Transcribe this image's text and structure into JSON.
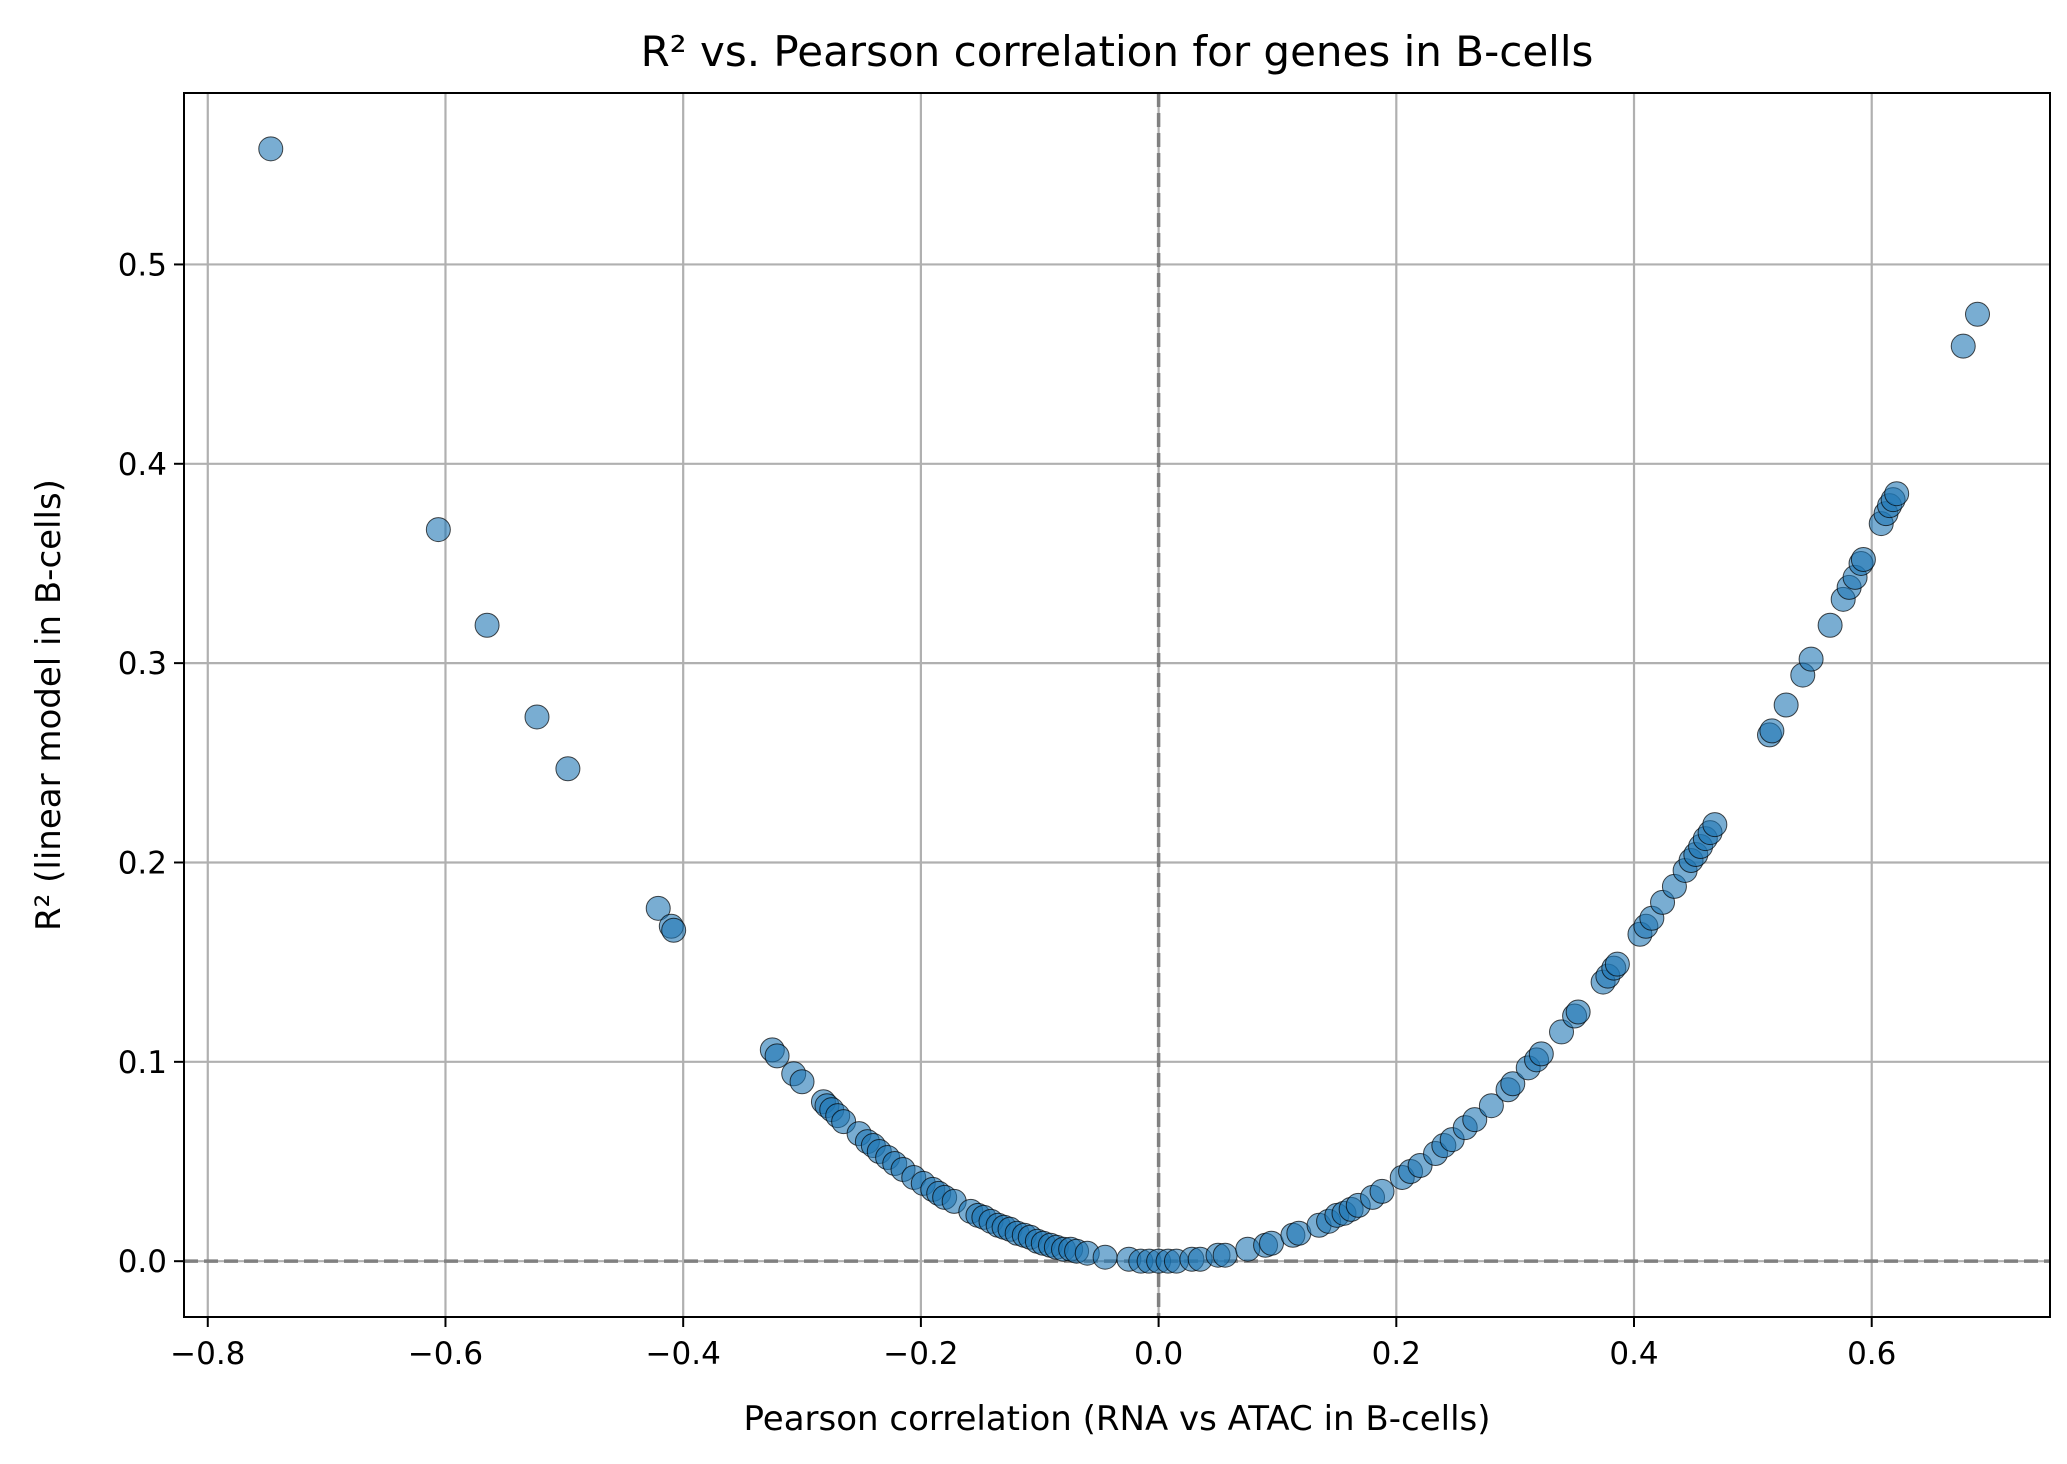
{
  "chart_data": {
    "type": "scatter",
    "title": "R² vs. Pearson correlation for genes in B-cells",
    "xlabel": "Pearson correlation (RNA vs ATAC in B-cells)",
    "ylabel": "R² (linear model in B-cells)",
    "xlim": [
      -0.82,
      0.75
    ],
    "ylim": [
      -0.028,
      0.586
    ],
    "xticks": [
      -0.8,
      -0.6,
      -0.4,
      -0.2,
      0.0,
      0.2,
      0.4,
      0.6
    ],
    "xtick_labels": [
      "−0.8",
      "−0.6",
      "−0.4",
      "−0.2",
      "0.0",
      "0.2",
      "0.4",
      "0.6"
    ],
    "yticks": [
      0.0,
      0.1,
      0.2,
      0.3,
      0.4,
      0.5
    ],
    "ytick_labels": [
      "0.0",
      "0.1",
      "0.2",
      "0.3",
      "0.4",
      "0.5"
    ],
    "grid": true,
    "reference_lines": [
      {
        "axis": "x",
        "value": 0.0
      },
      {
        "axis": "y",
        "value": 0.0
      }
    ],
    "colors": {
      "marker_fill": "#1f77b4",
      "marker_edge": "#000000",
      "reference_line": "#808080",
      "grid": "#b0b0b0"
    },
    "points": [
      {
        "x": -0.747,
        "y": 0.558
      },
      {
        "x": -0.606,
        "y": 0.367
      },
      {
        "x": -0.565,
        "y": 0.319
      },
      {
        "x": -0.523,
        "y": 0.273
      },
      {
        "x": -0.497,
        "y": 0.247
      },
      {
        "x": -0.421,
        "y": 0.177
      },
      {
        "x": -0.41,
        "y": 0.168
      },
      {
        "x": -0.408,
        "y": 0.166
      },
      {
        "x": -0.325,
        "y": 0.106
      },
      {
        "x": -0.321,
        "y": 0.103
      },
      {
        "x": -0.307,
        "y": 0.094
      },
      {
        "x": -0.3,
        "y": 0.09
      },
      {
        "x": -0.282,
        "y": 0.08
      },
      {
        "x": -0.279,
        "y": 0.078
      },
      {
        "x": -0.275,
        "y": 0.076
      },
      {
        "x": -0.27,
        "y": 0.073
      },
      {
        "x": -0.265,
        "y": 0.07
      },
      {
        "x": -0.252,
        "y": 0.064
      },
      {
        "x": -0.245,
        "y": 0.06
      },
      {
        "x": -0.24,
        "y": 0.058
      },
      {
        "x": -0.235,
        "y": 0.055
      },
      {
        "x": -0.228,
        "y": 0.052
      },
      {
        "x": -0.222,
        "y": 0.049
      },
      {
        "x": -0.215,
        "y": 0.046
      },
      {
        "x": -0.206,
        "y": 0.042
      },
      {
        "x": -0.198,
        "y": 0.039
      },
      {
        "x": -0.19,
        "y": 0.036
      },
      {
        "x": -0.185,
        "y": 0.034
      },
      {
        "x": -0.18,
        "y": 0.032
      },
      {
        "x": -0.172,
        "y": 0.03
      },
      {
        "x": -0.158,
        "y": 0.025
      },
      {
        "x": -0.152,
        "y": 0.023
      },
      {
        "x": -0.147,
        "y": 0.022
      },
      {
        "x": -0.141,
        "y": 0.02
      },
      {
        "x": -0.135,
        "y": 0.018
      },
      {
        "x": -0.13,
        "y": 0.017
      },
      {
        "x": -0.125,
        "y": 0.016
      },
      {
        "x": -0.119,
        "y": 0.014
      },
      {
        "x": -0.113,
        "y": 0.013
      },
      {
        "x": -0.108,
        "y": 0.012
      },
      {
        "x": -0.102,
        "y": 0.01
      },
      {
        "x": -0.097,
        "y": 0.009
      },
      {
        "x": -0.091,
        "y": 0.008
      },
      {
        "x": -0.086,
        "y": 0.007
      },
      {
        "x": -0.08,
        "y": 0.006
      },
      {
        "x": -0.074,
        "y": 0.006
      },
      {
        "x": -0.069,
        "y": 0.005
      },
      {
        "x": -0.06,
        "y": 0.004
      },
      {
        "x": -0.045,
        "y": 0.002
      },
      {
        "x": -0.025,
        "y": 0.001
      },
      {
        "x": -0.015,
        "y": 0.0
      },
      {
        "x": -0.008,
        "y": 0.0
      },
      {
        "x": 0.0,
        "y": 0.0
      },
      {
        "x": 0.008,
        "y": 0.0
      },
      {
        "x": 0.015,
        "y": 0.0
      },
      {
        "x": 0.028,
        "y": 0.001
      },
      {
        "x": 0.035,
        "y": 0.001
      },
      {
        "x": 0.05,
        "y": 0.003
      },
      {
        "x": 0.056,
        "y": 0.003
      },
      {
        "x": 0.075,
        "y": 0.006
      },
      {
        "x": 0.09,
        "y": 0.008
      },
      {
        "x": 0.095,
        "y": 0.009
      },
      {
        "x": 0.113,
        "y": 0.013
      },
      {
        "x": 0.118,
        "y": 0.014
      },
      {
        "x": 0.135,
        "y": 0.018
      },
      {
        "x": 0.143,
        "y": 0.02
      },
      {
        "x": 0.15,
        "y": 0.023
      },
      {
        "x": 0.156,
        "y": 0.024
      },
      {
        "x": 0.162,
        "y": 0.026
      },
      {
        "x": 0.168,
        "y": 0.028
      },
      {
        "x": 0.18,
        "y": 0.032
      },
      {
        "x": 0.188,
        "y": 0.035
      },
      {
        "x": 0.205,
        "y": 0.042
      },
      {
        "x": 0.212,
        "y": 0.045
      },
      {
        "x": 0.22,
        "y": 0.048
      },
      {
        "x": 0.233,
        "y": 0.054
      },
      {
        "x": 0.24,
        "y": 0.058
      },
      {
        "x": 0.247,
        "y": 0.061
      },
      {
        "x": 0.258,
        "y": 0.067
      },
      {
        "x": 0.266,
        "y": 0.071
      },
      {
        "x": 0.28,
        "y": 0.078
      },
      {
        "x": 0.294,
        "y": 0.086
      },
      {
        "x": 0.298,
        "y": 0.089
      },
      {
        "x": 0.311,
        "y": 0.097
      },
      {
        "x": 0.318,
        "y": 0.101
      },
      {
        "x": 0.322,
        "y": 0.104
      },
      {
        "x": 0.339,
        "y": 0.115
      },
      {
        "x": 0.35,
        "y": 0.123
      },
      {
        "x": 0.353,
        "y": 0.125
      },
      {
        "x": 0.374,
        "y": 0.14
      },
      {
        "x": 0.378,
        "y": 0.143
      },
      {
        "x": 0.383,
        "y": 0.147
      },
      {
        "x": 0.386,
        "y": 0.149
      },
      {
        "x": 0.405,
        "y": 0.164
      },
      {
        "x": 0.41,
        "y": 0.168
      },
      {
        "x": 0.415,
        "y": 0.172
      },
      {
        "x": 0.424,
        "y": 0.18
      },
      {
        "x": 0.434,
        "y": 0.188
      },
      {
        "x": 0.443,
        "y": 0.196
      },
      {
        "x": 0.448,
        "y": 0.201
      },
      {
        "x": 0.452,
        "y": 0.204
      },
      {
        "x": 0.456,
        "y": 0.208
      },
      {
        "x": 0.46,
        "y": 0.212
      },
      {
        "x": 0.464,
        "y": 0.215
      },
      {
        "x": 0.468,
        "y": 0.219
      },
      {
        "x": 0.514,
        "y": 0.264
      },
      {
        "x": 0.516,
        "y": 0.266
      },
      {
        "x": 0.528,
        "y": 0.279
      },
      {
        "x": 0.542,
        "y": 0.294
      },
      {
        "x": 0.549,
        "y": 0.302
      },
      {
        "x": 0.565,
        "y": 0.319
      },
      {
        "x": 0.576,
        "y": 0.332
      },
      {
        "x": 0.581,
        "y": 0.338
      },
      {
        "x": 0.586,
        "y": 0.343
      },
      {
        "x": 0.591,
        "y": 0.35
      },
      {
        "x": 0.593,
        "y": 0.352
      },
      {
        "x": 0.608,
        "y": 0.37
      },
      {
        "x": 0.612,
        "y": 0.375
      },
      {
        "x": 0.615,
        "y": 0.379
      },
      {
        "x": 0.618,
        "y": 0.382
      },
      {
        "x": 0.621,
        "y": 0.385
      },
      {
        "x": 0.677,
        "y": 0.459
      },
      {
        "x": 0.689,
        "y": 0.475
      }
    ]
  }
}
